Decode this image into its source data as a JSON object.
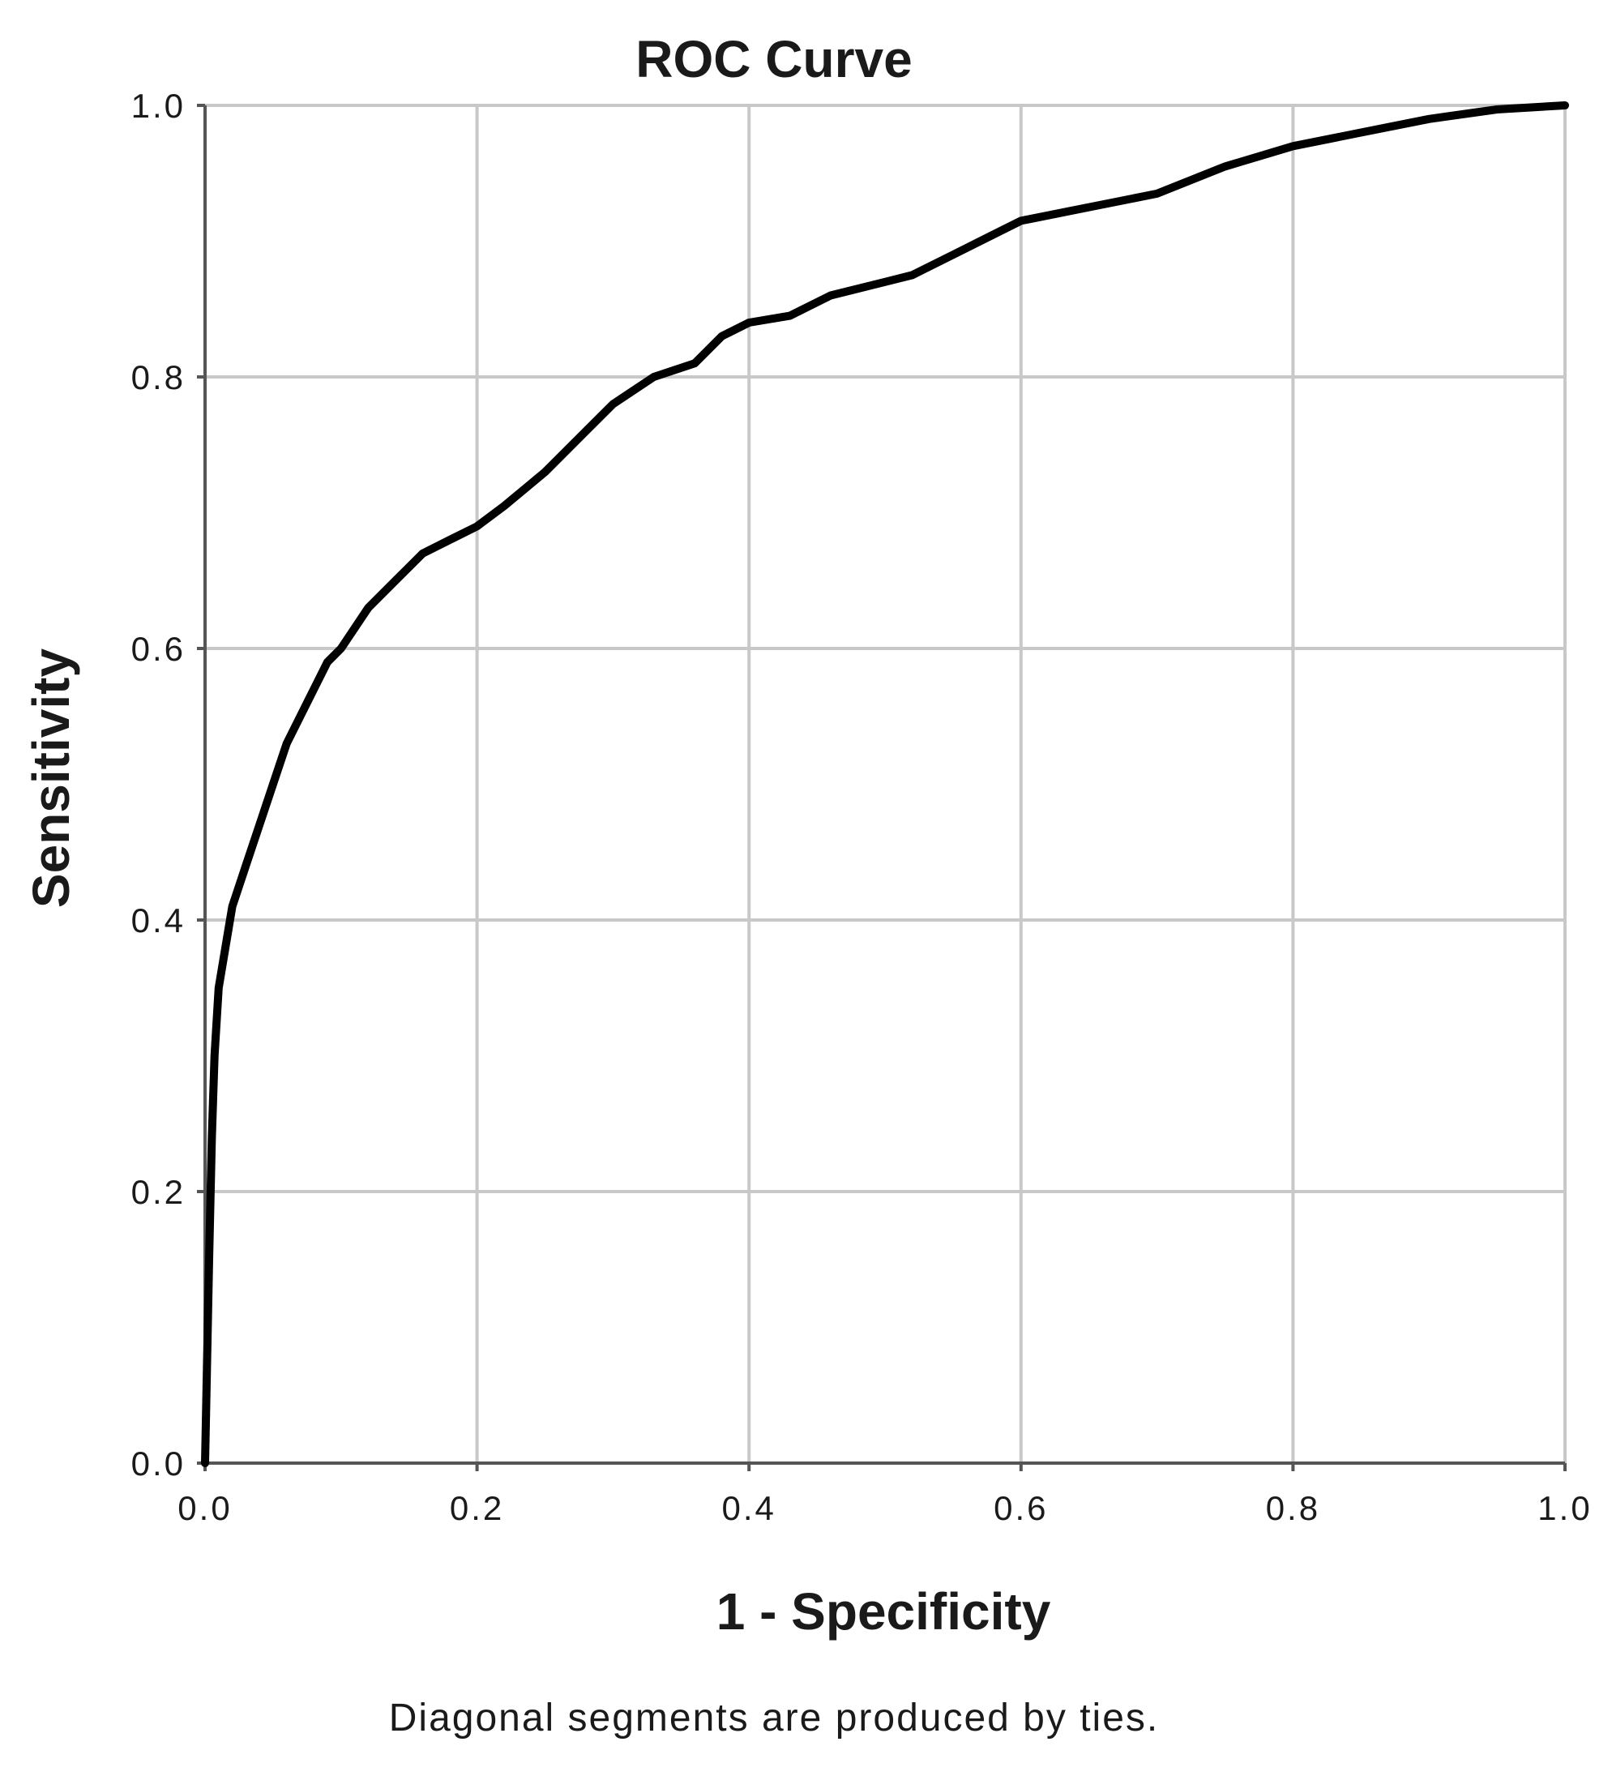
{
  "chart_data": {
    "type": "line",
    "title": "ROC Curve",
    "xlabel": "1 - Specificity",
    "ylabel": "Sensitivity",
    "footnote": "Diagonal segments are produced by ties.",
    "xlim": [
      0,
      1
    ],
    "ylim": [
      0,
      1
    ],
    "grid": true,
    "x_ticks": [
      "0.0",
      "0.2",
      "0.4",
      "0.6",
      "0.8",
      "1.0"
    ],
    "y_ticks": [
      "0.0",
      "0.2",
      "0.4",
      "0.6",
      "0.8",
      "1.0"
    ],
    "colors": {
      "line": "#000000",
      "grid": "#c8c8c8",
      "axis": "#555555"
    },
    "series": [
      {
        "x": [
          0.0,
          0.003,
          0.005,
          0.007,
          0.01,
          0.015,
          0.02,
          0.03,
          0.04,
          0.05,
          0.06,
          0.07,
          0.08,
          0.09,
          0.1,
          0.12,
          0.14,
          0.16,
          0.18,
          0.2,
          0.22,
          0.25,
          0.28,
          0.3,
          0.33,
          0.36,
          0.38,
          0.4,
          0.43,
          0.46,
          0.5,
          0.52,
          0.55,
          0.58,
          0.6,
          0.65,
          0.7,
          0.75,
          0.8,
          0.85,
          0.9,
          0.95,
          1.0
        ],
        "y": [
          0.0,
          0.15,
          0.24,
          0.3,
          0.35,
          0.38,
          0.41,
          0.44,
          0.47,
          0.5,
          0.53,
          0.55,
          0.57,
          0.59,
          0.6,
          0.63,
          0.65,
          0.67,
          0.68,
          0.69,
          0.705,
          0.73,
          0.76,
          0.78,
          0.8,
          0.81,
          0.83,
          0.84,
          0.845,
          0.86,
          0.87,
          0.875,
          0.89,
          0.905,
          0.915,
          0.925,
          0.935,
          0.955,
          0.97,
          0.98,
          0.99,
          0.997,
          1.0
        ]
      }
    ]
  }
}
